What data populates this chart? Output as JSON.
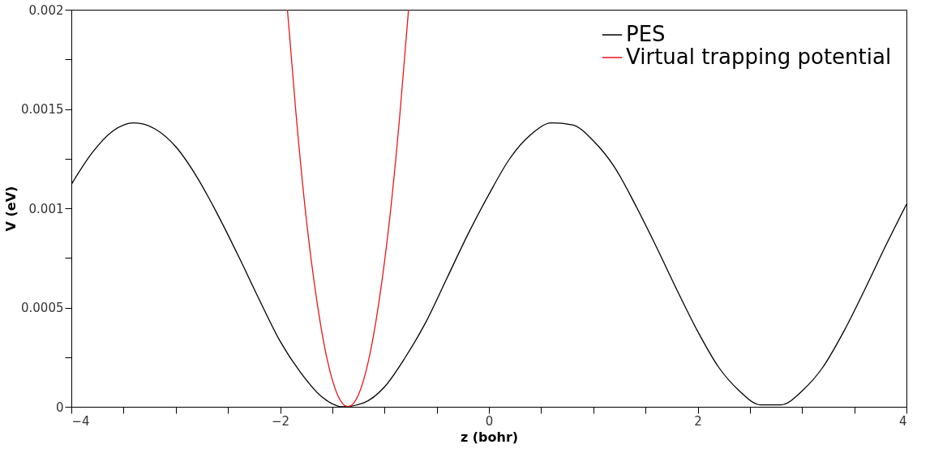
{
  "chart_data": {
    "type": "line",
    "xlabel": "z (bohr)",
    "ylabel": "V (eV)",
    "xlim": [
      -4,
      4
    ],
    "ylim": [
      0,
      0.002
    ],
    "xticks": [
      {
        "value": -4,
        "label": "−4"
      },
      {
        "value": -3.5,
        "label": null
      },
      {
        "value": -3,
        "label": null
      },
      {
        "value": -2.5,
        "label": null
      },
      {
        "value": -2,
        "label": "−2"
      },
      {
        "value": -1.5,
        "label": null
      },
      {
        "value": -1,
        "label": null
      },
      {
        "value": -0.5,
        "label": null
      },
      0,
      {
        "value": 0.5,
        "label": null
      },
      {
        "value": 1,
        "label": null
      },
      {
        "value": 1.5,
        "label": null
      },
      2,
      {
        "value": 2.5,
        "label": null
      },
      {
        "value": 3,
        "label": null
      },
      {
        "value": 3.5,
        "label": null
      },
      4
    ],
    "yticks": [
      0,
      {
        "value": 0.00025,
        "label": null
      },
      0.0005,
      {
        "value": 0.00075,
        "label": null
      },
      0.001,
      {
        "value": 0.00125,
        "label": null
      },
      0.0015,
      {
        "value": 0.00175,
        "label": null
      },
      0.002
    ],
    "grid": false,
    "legend": "top right",
    "marker": "none",
    "line_style": "solid",
    "series": [
      {
        "name": "PES",
        "color": "#000000",
        "x": [
          -4,
          -3.8,
          -3.6,
          -3.4,
          -3.2,
          -3.0,
          -2.8,
          -2.6,
          -2.4,
          -2.2,
          -2.0,
          -1.8,
          -1.6,
          -1.4,
          -1.2,
          -1.0,
          -0.8,
          -0.6,
          -0.4,
          -0.2,
          0,
          0.2,
          0.4,
          0.6,
          0.8,
          1.0,
          1.2,
          1.4,
          1.6,
          1.8,
          2.0,
          2.2,
          2.4,
          2.6,
          2.8,
          3.0,
          3.2,
          3.4,
          3.6,
          3.8,
          4.0
        ],
        "values": [
          0.00112,
          0.00128,
          0.00139,
          0.00143,
          0.0014,
          0.00131,
          0.00116,
          0.00097,
          0.00076,
          0.00054,
          0.00033,
          0.00017,
          5e-05,
          0.0,
          2e-05,
          0.0001,
          0.00025,
          0.00043,
          0.00065,
          0.00087,
          0.00107,
          0.00125,
          0.00137,
          0.00143,
          0.00142,
          0.00134,
          0.00121,
          0.00102,
          0.00081,
          0.00059,
          0.00038,
          0.0002,
          8e-05,
          1e-05,
          1e-05,
          8e-05,
          0.0002,
          0.00038,
          0.00059,
          0.00081,
          0.00102
        ]
      },
      {
        "name": "Virtual trapping potential",
        "color": "#e8141a",
        "x": [
          -1.93,
          -1.85,
          -1.75,
          -1.65,
          -1.55,
          -1.45,
          -1.35,
          -1.25,
          -1.15,
          -1.05,
          -0.95,
          -0.85,
          -0.77
        ],
        "values": [
          0.002,
          0.00149,
          0.00095,
          0.00054,
          0.00024,
          6e-05,
          0.0,
          6e-05,
          0.00024,
          0.00054,
          0.00095,
          0.00149,
          0.002
        ]
      }
    ]
  }
}
